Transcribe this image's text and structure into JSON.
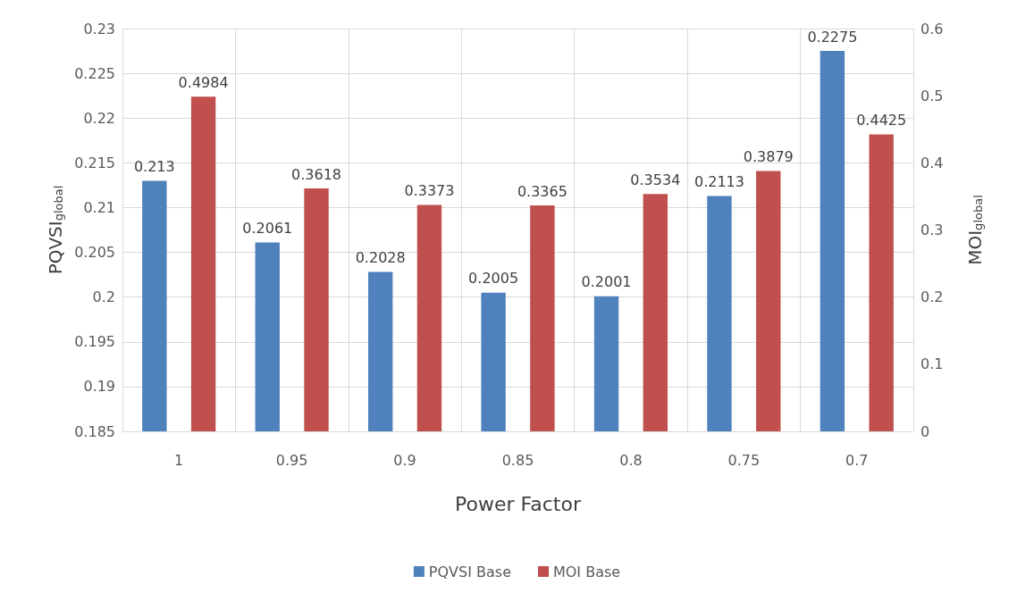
{
  "chart_data": {
    "type": "bar",
    "xlabel": "Power Factor",
    "ylabel": "PQVSI$_{global}$",
    "y2label": "MOI$_{global}$",
    "categories": [
      "1",
      "0.95",
      "0.9",
      "0.85",
      "0.8",
      "0.75",
      "0.7"
    ],
    "series": [
      {
        "name": "PQVSI Base",
        "color": "#4f81bd",
        "values": [
          0.213,
          0.2061,
          0.2028,
          0.2005,
          0.2001,
          0.2113,
          0.2275
        ]
      },
      {
        "name": "MOI Base",
        "color": "#c0504d",
        "axis": "y2",
        "values": [
          0.4984,
          0.3618,
          0.3373,
          0.3365,
          0.3534,
          0.3879,
          0.4425
        ]
      }
    ],
    "ylim": [
      0.185,
      0.23
    ],
    "yticks": [
      0.185,
      0.19,
      0.195,
      0.2,
      0.205,
      0.21,
      0.215,
      0.22,
      0.225,
      0.23
    ],
    "y2lim": [
      0,
      0.6
    ],
    "y2ticks": [
      0,
      0.1,
      0.2,
      0.3,
      0.4,
      0.5,
      0.6
    ],
    "data_labels": true,
    "grid": true,
    "legend": "bottom"
  }
}
